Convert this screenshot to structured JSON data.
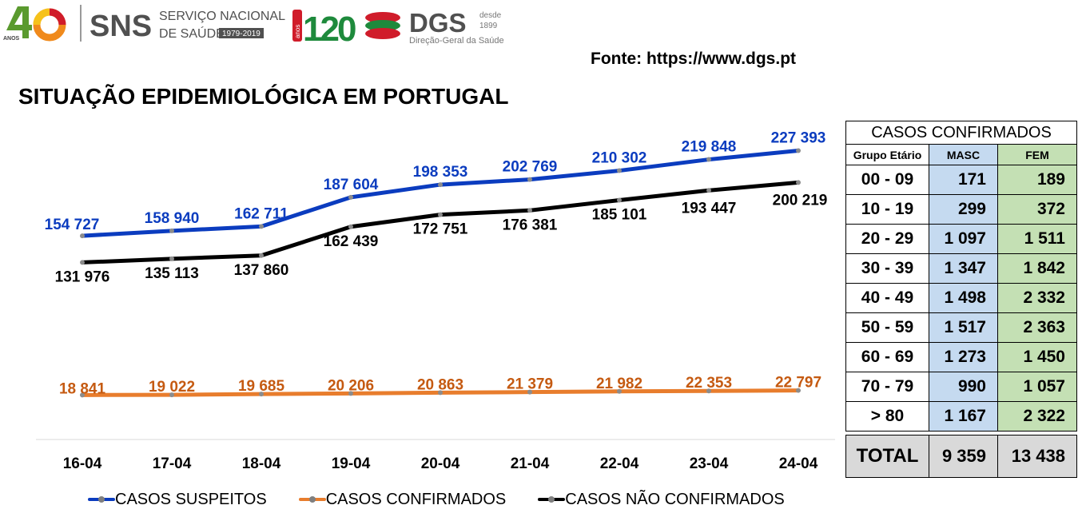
{
  "header": {
    "sns_years_number": "40",
    "sns_years_label": "ANOS",
    "sns_acronym": "SNS",
    "sns_name_line1": "SERVIÇO NACIONAL",
    "sns_name_line2": "DE SAÚDE",
    "sns_period": "1979-2019",
    "dgs_years_number": "120",
    "dgs_years_label": "anos",
    "dgs_acronym": "DGS",
    "dgs_since_line1": "desde",
    "dgs_since_line2": "1899",
    "dgs_name": "Direção-Geral da Saúde",
    "source": "Fonte: https://www.dgs.pt",
    "title": "SITUAÇÃO EPIDEMIOLÓGICA EM PORTUGAL"
  },
  "chart_data": {
    "type": "line",
    "title": "SITUAÇÃO EPIDEMIOLÓGICA EM PORTUGAL",
    "categories": [
      "16-04",
      "17-04",
      "18-04",
      "19-04",
      "20-04",
      "21-04",
      "22-04",
      "23-04",
      "24-04"
    ],
    "ylim": [
      0,
      240000
    ],
    "legend_position": "bottom",
    "series": [
      {
        "name": "CASOS SUSPEITOS",
        "color": "#0b3cbf",
        "values": [
          154727,
          158940,
          162711,
          187604,
          198353,
          202769,
          210302,
          219848,
          227393
        ],
        "labels": [
          "154 727",
          "158 940",
          "162 711",
          "187 604",
          "198 353",
          "202 769",
          "210 302",
          "219 848",
          "227 393"
        ]
      },
      {
        "name": "CASOS CONFIRMADOS",
        "color": "#e87d2d",
        "label_color": "#c55a11",
        "values": [
          18841,
          19022,
          19685,
          20206,
          20863,
          21379,
          21982,
          22353,
          22797
        ],
        "labels": [
          "18 841",
          "19 022",
          "19 685",
          "20 206",
          "20 863",
          "21 379",
          "21 982",
          "22 353",
          "22 797"
        ]
      },
      {
        "name": "CASOS NÃO CONFIRMADOS",
        "color": "#000000",
        "values": [
          131976,
          135113,
          137860,
          162439,
          172751,
          176381,
          185101,
          193447,
          200219
        ],
        "labels": [
          "131 976",
          "135 113",
          "137 860",
          "162 439",
          "172 751",
          "176 381",
          "185 101",
          "193 447",
          "200 219"
        ]
      }
    ]
  },
  "legend": {
    "suspeitos": "CASOS SUSPEITOS",
    "confirmados": "CASOS CONFIRMADOS",
    "nao_confirmados": "CASOS NÃO CONFIRMADOS"
  },
  "table": {
    "title": "CASOS CONFIRMADOS",
    "col_group": "Grupo Etário",
    "col_masc": "MASC",
    "col_fem": "FEM",
    "rows": [
      {
        "group": "00 - 09",
        "masc": "171",
        "fem": "189"
      },
      {
        "group": "10 - 19",
        "masc": "299",
        "fem": "372"
      },
      {
        "group": "20 - 29",
        "masc": "1 097",
        "fem": "1 511"
      },
      {
        "group": "30 - 39",
        "masc": "1 347",
        "fem": "1 842"
      },
      {
        "group": "40 - 49",
        "masc": "1 498",
        "fem": "2 332"
      },
      {
        "group": "50 - 59",
        "masc": "1 517",
        "fem": "2 363"
      },
      {
        "group": "60 - 69",
        "masc": "1 273",
        "fem": "1 450"
      },
      {
        "group": "70 - 79",
        "masc": "990",
        "fem": "1 057"
      },
      {
        "group": "> 80",
        "masc": "1 167",
        "fem": "2 322"
      }
    ],
    "total": {
      "label": "TOTAL",
      "masc": "9 359",
      "fem": "13 438"
    }
  },
  "colors": {
    "masc_bg": "#c5daf0",
    "fem_bg": "#c4e0b4",
    "total_bg": "#d9d9d9",
    "sns_green": "#5a9a2e",
    "sns_orange": "#f08a1c",
    "dgs_red": "#d01c2a",
    "dgs_green": "#1e8a3c"
  }
}
